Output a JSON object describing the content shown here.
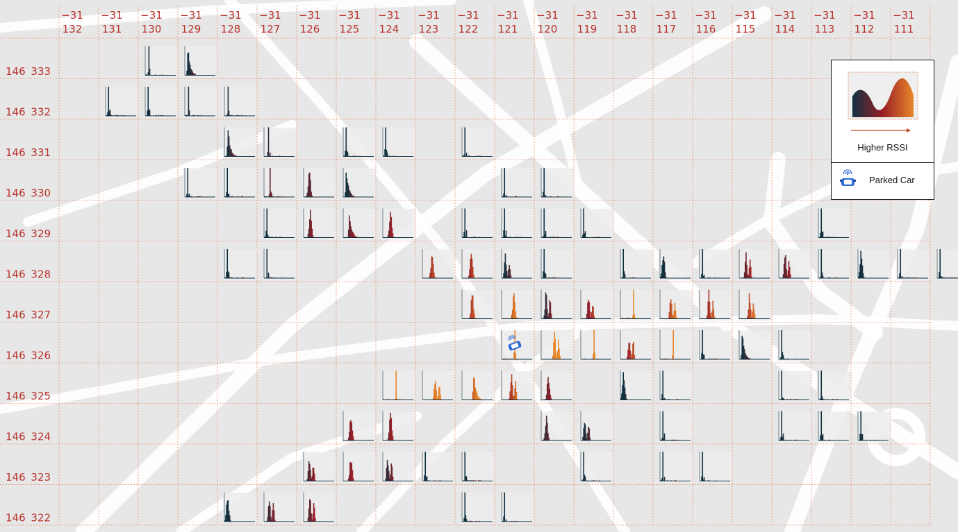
{
  "palette": {
    "low": "#0f3140",
    "mid": "#9a1f26",
    "high": "#e8872a",
    "grid": "#e5946f",
    "label": "#b8322a",
    "tile_bg": "#ececec",
    "road": "#ffffff",
    "car": "#2f6bd8"
  },
  "legend": {
    "rssi_label": "Higher RSSI",
    "car_label": "Parked Car",
    "car_icon": "parked-car-icon"
  },
  "chart_data": {
    "type": "heatmap",
    "description_of_cells": "small RSSI histograms per grid cell; weight 0=dark teal (low RSSI) to 1=orange (high RSSI)",
    "columns": [
      {
        "top": "-31",
        "bottom": "132"
      },
      {
        "top": "-31",
        "bottom": "131"
      },
      {
        "top": "-31",
        "bottom": "130"
      },
      {
        "top": "-31",
        "bottom": "129"
      },
      {
        "top": "-31",
        "bottom": "128"
      },
      {
        "top": "-31",
        "bottom": "127"
      },
      {
        "top": "-31",
        "bottom": "126"
      },
      {
        "top": "-31",
        "bottom": "125"
      },
      {
        "top": "-31",
        "bottom": "124"
      },
      {
        "top": "-31",
        "bottom": "123"
      },
      {
        "top": "-31",
        "bottom": "122"
      },
      {
        "top": "-31",
        "bottom": "121"
      },
      {
        "top": "-31",
        "bottom": "120"
      },
      {
        "top": "-31",
        "bottom": "119"
      },
      {
        "top": "-31",
        "bottom": "118"
      },
      {
        "top": "-31",
        "bottom": "117"
      },
      {
        "top": "-31",
        "bottom": "116"
      },
      {
        "top": "-31",
        "bottom": "115"
      },
      {
        "top": "-31",
        "bottom": "114"
      },
      {
        "top": "-31",
        "bottom": "113"
      },
      {
        "top": "-31",
        "bottom": "112"
      },
      {
        "top": "-31",
        "bottom": "111"
      }
    ],
    "rows": [
      {
        "left": "146",
        "right": "333"
      },
      {
        "left": "146",
        "right": "332"
      },
      {
        "left": "146",
        "right": "331"
      },
      {
        "left": "146",
        "right": "330"
      },
      {
        "left": "146",
        "right": "329"
      },
      {
        "left": "146",
        "right": "328"
      },
      {
        "left": "146",
        "right": "327"
      },
      {
        "left": "146",
        "right": "326"
      },
      {
        "left": "146",
        "right": "325"
      },
      {
        "left": "146",
        "right": "324"
      },
      {
        "left": "146",
        "right": "323"
      },
      {
        "left": "146",
        "right": "322"
      }
    ],
    "cells": [
      {
        "row": 0,
        "col": 2,
        "w": 0.05,
        "shape": "spike"
      },
      {
        "row": 0,
        "col": 3,
        "w": 0.0,
        "shape": "decay"
      },
      {
        "row": 1,
        "col": 1,
        "w": 0.0,
        "shape": "spike"
      },
      {
        "row": 1,
        "col": 2,
        "w": 0.0,
        "shape": "spike"
      },
      {
        "row": 1,
        "col": 3,
        "w": 0.05,
        "shape": "spike"
      },
      {
        "row": 1,
        "col": 4,
        "w": 0.05,
        "shape": "spike"
      },
      {
        "row": 2,
        "col": 4,
        "w": 0.05,
        "shape": "decay"
      },
      {
        "row": 2,
        "col": 5,
        "w": 0.15,
        "shape": "spike"
      },
      {
        "row": 2,
        "col": 7,
        "w": 0.0,
        "shape": "spike"
      },
      {
        "row": 2,
        "col": 8,
        "w": 0.0,
        "shape": "spike"
      },
      {
        "row": 2,
        "col": 10,
        "w": 0.0,
        "shape": "spike"
      },
      {
        "row": 3,
        "col": 3,
        "w": 0.0,
        "shape": "spike"
      },
      {
        "row": 3,
        "col": 4,
        "w": 0.0,
        "shape": "spike"
      },
      {
        "row": 3,
        "col": 5,
        "w": 0.3,
        "shape": "spike"
      },
      {
        "row": 3,
        "col": 6,
        "w": 0.25,
        "shape": "normal"
      },
      {
        "row": 3,
        "col": 7,
        "w": 0.0,
        "shape": "decay"
      },
      {
        "row": 3,
        "col": 11,
        "w": 0.0,
        "shape": "spike"
      },
      {
        "row": 3,
        "col": 12,
        "w": 0.0,
        "shape": "spike"
      },
      {
        "row": 4,
        "col": 5,
        "w": 0.0,
        "shape": "spike"
      },
      {
        "row": 4,
        "col": 6,
        "w": 0.35,
        "shape": "normal"
      },
      {
        "row": 4,
        "col": 7,
        "w": 0.3,
        "shape": "decay"
      },
      {
        "row": 4,
        "col": 8,
        "w": 0.45,
        "shape": "normal"
      },
      {
        "row": 4,
        "col": 10,
        "w": 0.0,
        "shape": "spike"
      },
      {
        "row": 4,
        "col": 11,
        "w": 0.0,
        "shape": "spike"
      },
      {
        "row": 4,
        "col": 12,
        "w": 0.0,
        "shape": "spike"
      },
      {
        "row": 4,
        "col": 13,
        "w": 0.0,
        "shape": "spike"
      },
      {
        "row": 4,
        "col": 19,
        "w": 0.0,
        "shape": "spike"
      },
      {
        "row": 5,
        "col": 4,
        "w": 0.0,
        "shape": "spike"
      },
      {
        "row": 5,
        "col": 5,
        "w": 0.0,
        "shape": "spike"
      },
      {
        "row": 5,
        "col": 9,
        "w": 0.65,
        "shape": "normal"
      },
      {
        "row": 5,
        "col": 10,
        "w": 0.6,
        "shape": "normal"
      },
      {
        "row": 5,
        "col": 11,
        "w": 0.05,
        "shape": "bimodal"
      },
      {
        "row": 5,
        "col": 12,
        "w": 0.0,
        "shape": "spike"
      },
      {
        "row": 5,
        "col": 14,
        "w": 0.0,
        "shape": "spike"
      },
      {
        "row": 5,
        "col": 15,
        "w": 0.0,
        "shape": "normal"
      },
      {
        "row": 5,
        "col": 16,
        "w": 0.0,
        "shape": "spike"
      },
      {
        "row": 5,
        "col": 17,
        "w": 0.35,
        "shape": "bimodal"
      },
      {
        "row": 5,
        "col": 18,
        "w": 0.3,
        "shape": "bimodal"
      },
      {
        "row": 5,
        "col": 19,
        "w": 0.0,
        "shape": "spike"
      },
      {
        "row": 5,
        "col": 20,
        "w": 0.0,
        "shape": "normal"
      },
      {
        "row": 5,
        "col": 21,
        "w": 0.0,
        "shape": "spike"
      },
      {
        "row": 5,
        "col": 22,
        "w": 0.0,
        "shape": "spike"
      },
      {
        "row": 6,
        "col": 10,
        "w": 0.7,
        "shape": "normal"
      },
      {
        "row": 6,
        "col": 11,
        "w": 0.9,
        "shape": "normal"
      },
      {
        "row": 6,
        "col": 12,
        "w": 0.15,
        "shape": "bimodal"
      },
      {
        "row": 6,
        "col": 13,
        "w": 0.45,
        "shape": "bimodal"
      },
      {
        "row": 6,
        "col": 14,
        "w": 1.0,
        "shape": "spike"
      },
      {
        "row": 6,
        "col": 15,
        "w": 0.75,
        "shape": "bimodal"
      },
      {
        "row": 6,
        "col": 16,
        "w": 0.6,
        "shape": "bimodal"
      },
      {
        "row": 6,
        "col": 17,
        "w": 0.7,
        "shape": "bimodal"
      },
      {
        "row": 7,
        "col": 11,
        "w": 1.0,
        "shape": "spike"
      },
      {
        "row": 7,
        "col": 12,
        "w": 1.0,
        "shape": "bimodal"
      },
      {
        "row": 7,
        "col": 13,
        "w": 1.0,
        "shape": "spike"
      },
      {
        "row": 7,
        "col": 14,
        "w": 0.55,
        "shape": "bimodal"
      },
      {
        "row": 7,
        "col": 15,
        "w": 1.0,
        "shape": "spike"
      },
      {
        "row": 7,
        "col": 16,
        "w": 0.0,
        "shape": "spike"
      },
      {
        "row": 7,
        "col": 17,
        "w": 0.0,
        "shape": "decay"
      },
      {
        "row": 7,
        "col": 18,
        "w": 0.0,
        "shape": "spike"
      },
      {
        "row": 8,
        "col": 8,
        "w": 1.0,
        "shape": "spike"
      },
      {
        "row": 8,
        "col": 9,
        "w": 0.95,
        "shape": "bimodal"
      },
      {
        "row": 8,
        "col": 10,
        "w": 0.85,
        "shape": "decay"
      },
      {
        "row": 8,
        "col": 11,
        "w": 0.65,
        "shape": "bimodal"
      },
      {
        "row": 8,
        "col": 12,
        "w": 0.4,
        "shape": "normal"
      },
      {
        "row": 8,
        "col": 14,
        "w": 0.0,
        "shape": "normal"
      },
      {
        "row": 8,
        "col": 15,
        "w": 0.0,
        "shape": "spike"
      },
      {
        "row": 8,
        "col": 18,
        "w": 0.0,
        "shape": "spike"
      },
      {
        "row": 8,
        "col": 19,
        "w": 0.0,
        "shape": "spike"
      },
      {
        "row": 9,
        "col": 7,
        "w": 0.45,
        "shape": "normal"
      },
      {
        "row": 9,
        "col": 8,
        "w": 0.45,
        "shape": "normal"
      },
      {
        "row": 9,
        "col": 12,
        "w": 0.2,
        "shape": "normal"
      },
      {
        "row": 9,
        "col": 13,
        "w": 0.05,
        "shape": "bimodal"
      },
      {
        "row": 9,
        "col": 15,
        "w": 0.0,
        "shape": "spike"
      },
      {
        "row": 9,
        "col": 18,
        "w": 0.0,
        "shape": "spike"
      },
      {
        "row": 9,
        "col": 19,
        "w": 0.0,
        "shape": "spike"
      },
      {
        "row": 9,
        "col": 20,
        "w": 0.0,
        "shape": "spike"
      },
      {
        "row": 10,
        "col": 6,
        "w": 0.25,
        "shape": "bimodal"
      },
      {
        "row": 10,
        "col": 7,
        "w": 0.45,
        "shape": "normal"
      },
      {
        "row": 10,
        "col": 8,
        "w": 0.15,
        "shape": "bimodal"
      },
      {
        "row": 10,
        "col": 9,
        "w": 0.0,
        "shape": "spike"
      },
      {
        "row": 10,
        "col": 10,
        "w": 0.0,
        "shape": "spike"
      },
      {
        "row": 10,
        "col": 13,
        "w": 0.0,
        "shape": "spike"
      },
      {
        "row": 10,
        "col": 15,
        "w": 0.0,
        "shape": "spike"
      },
      {
        "row": 10,
        "col": 16,
        "w": 0.0,
        "shape": "spike"
      },
      {
        "row": 11,
        "col": 4,
        "w": 0.0,
        "shape": "normal"
      },
      {
        "row": 11,
        "col": 5,
        "w": 0.2,
        "shape": "bimodal"
      },
      {
        "row": 11,
        "col": 6,
        "w": 0.3,
        "shape": "bimodal"
      },
      {
        "row": 11,
        "col": 10,
        "w": 0.0,
        "shape": "spike"
      },
      {
        "row": 11,
        "col": 11,
        "w": 0.0,
        "shape": "spike"
      }
    ],
    "parked_car": {
      "row": 7,
      "col": 12
    }
  }
}
